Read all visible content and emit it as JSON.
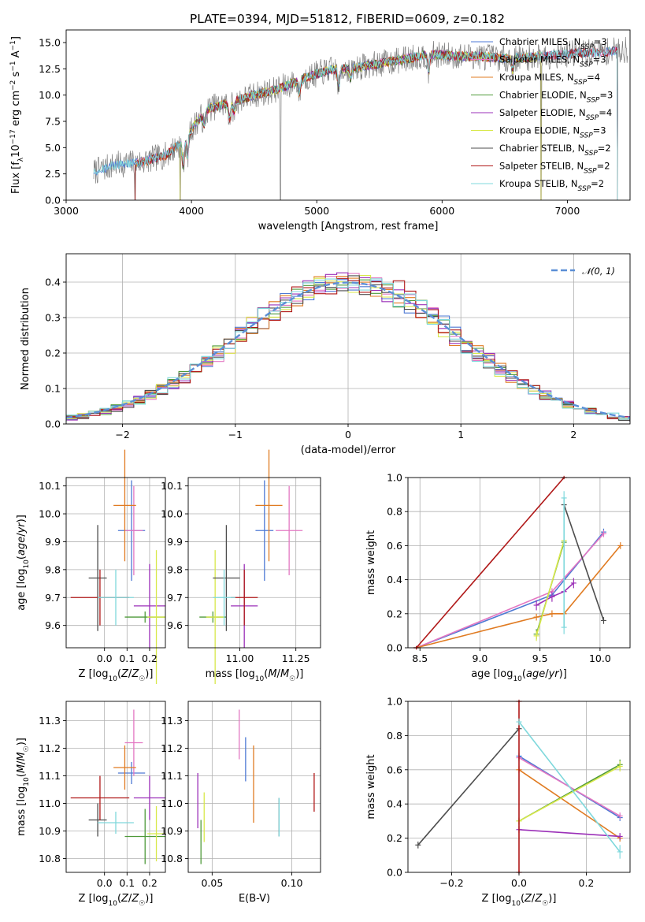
{
  "figure_title": "PLATE=0394, MJD=51812, FIBERID=0609, z=0.182",
  "palette": {
    "Chabrier MILES": "#4e79d4",
    "Salpeter MILES": "#e377c2",
    "Kroupa MILES": "#e07b22",
    "Chabrier ELODIE": "#4f9a3a",
    "Salpeter ELODIE": "#9b30b8",
    "Kroupa ELODIE": "#d8e84a",
    "Chabrier STELIB": "#4d4d4d",
    "Salpeter STELIB": "#b01818",
    "Kroupa STELIB": "#7fd8dc",
    "normal_curve": "#5b8fd6",
    "gray_spectrum": "#808080"
  },
  "chart_data": [
    {
      "id": "spectrum",
      "type": "line",
      "title": "PLATE=0394, MJD=51812, FIBERID=0609, z=0.182",
      "xlabel": "wavelength [Angstrom, rest frame]",
      "ylabel": "Flux [f_λ 10^-17 erg cm^-2 s^-1 A^-1]",
      "xlim": [
        3000,
        7500
      ],
      "ylim": [
        0,
        16.2
      ],
      "xticks": [
        "3000",
        "4000",
        "5000",
        "6000",
        "7000"
      ],
      "yticks": [
        "0.0",
        "2.5",
        "5.0",
        "7.5",
        "10.0",
        "12.5",
        "15.0"
      ],
      "grid": false,
      "legend_placement": "upper right",
      "legend": [
        {
          "base": "Chabrier MILES, N",
          "sub": "SSP",
          "tail": "=3"
        },
        {
          "base": "Salpeter MILES, N",
          "sub": "SSP",
          "tail": "=3"
        },
        {
          "base": "Kroupa MILES, N",
          "sub": "SSP",
          "tail": "=4"
        },
        {
          "base": "Chabrier ELODIE, N",
          "sub": "SSP",
          "tail": "=3"
        },
        {
          "base": "Salpeter ELODIE, N",
          "sub": "SSP",
          "tail": "=4"
        },
        {
          "base": "Kroupa ELODIE, N",
          "sub": "SSP",
          "tail": "=3"
        },
        {
          "base": "Chabrier STELIB, N",
          "sub": "SSP",
          "tail": "=2"
        },
        {
          "base": "Salpeter STELIB, N",
          "sub": "SSP",
          "tail": "=2"
        },
        {
          "base": "Kroupa STELIB, N",
          "sub": "SSP",
          "tail": "=2"
        }
      ],
      "continuum": {
        "x": [
          3220,
          3400,
          3600,
          3800,
          3950,
          4050,
          4150,
          4300,
          4500,
          4700,
          4900,
          5100,
          5300,
          5500,
          5700,
          5900,
          6100,
          6300,
          6500,
          6700,
          6900,
          7100,
          7300,
          7450
        ],
        "y": [
          2.7,
          3.4,
          3.6,
          4.3,
          5.8,
          7.6,
          8.8,
          9.2,
          10.0,
          10.6,
          11.6,
          12.4,
          12.6,
          13.0,
          13.4,
          13.9,
          13.7,
          13.7,
          13.5,
          13.6,
          13.8,
          14.0,
          14.1,
          14.3
        ]
      },
      "features": [
        {
          "x": 3934,
          "depth": 2.3
        },
        {
          "x": 3968,
          "depth": 2.0
        },
        {
          "x": 4101,
          "depth": 1.2
        },
        {
          "x": 4304,
          "depth": 1.5
        },
        {
          "x": 4340,
          "depth": 1.0
        },
        {
          "x": 4861,
          "depth": 1.3
        },
        {
          "x": 5175,
          "depth": 1.8
        },
        {
          "x": 5270,
          "depth": 1.0
        },
        {
          "x": 5893,
          "depth": 1.6
        },
        {
          "x": 6563,
          "depth": 1.2
        }
      ],
      "spikes": [
        {
          "x": 3550,
          "to": 0
        },
        {
          "x": 3910,
          "to": 0
        },
        {
          "x": 4710,
          "to": 0
        },
        {
          "x": 6790,
          "to": 0
        },
        {
          "x": 7400,
          "to": 0
        }
      ]
    },
    {
      "id": "residuals",
      "type": "histogram",
      "xlabel": "(data-model)/error",
      "ylabel": "Normed distribution",
      "xlim": [
        -2.5,
        2.5
      ],
      "ylim": [
        0,
        0.48
      ],
      "xticks": [
        "−2",
        "−1",
        "0",
        "1",
        "2"
      ],
      "yticks": [
        "0.0",
        "0.1",
        "0.2",
        "0.3",
        "0.4"
      ],
      "grid": true,
      "legend_placement": "upper right",
      "normal_label": "𝒩(0, 1)",
      "bin_width": 0.1
    },
    {
      "id": "age_vs_Z",
      "type": "errorbar",
      "xlabel": "Z [log10(Z/Z☉)]",
      "ylabel": "age  [log10(age/yr)]",
      "xlim": [
        -0.17,
        0.27
      ],
      "ylim": [
        9.52,
        10.13
      ],
      "xticks": [
        "0.0",
        "0.1",
        "0.2"
      ],
      "yticks": [
        "9.6",
        "9.7",
        "9.8",
        "9.9",
        "10.0",
        "10.1"
      ],
      "grid": true,
      "points": [
        {
          "model": "Chabrier MILES",
          "x": 0.12,
          "y": 9.94,
          "xerr": 0.06,
          "yerr": 0.18
        },
        {
          "model": "Salpeter MILES",
          "x": 0.13,
          "y": 9.94,
          "xerr": 0.04,
          "yerr": 0.16
        },
        {
          "model": "Kroupa MILES",
          "x": 0.09,
          "y": 10.03,
          "xerr": 0.05,
          "yerr": 0.2
        },
        {
          "model": "Chabrier ELODIE",
          "x": 0.18,
          "y": 9.63,
          "xerr": 0.09,
          "yerr": 0.02
        },
        {
          "model": "Salpeter ELODIE",
          "x": 0.2,
          "y": 9.67,
          "xerr": 0.07,
          "yerr": 0.15
        },
        {
          "model": "Kroupa ELODIE",
          "x": 0.23,
          "y": 9.63,
          "xerr": 0.04,
          "yerr": 0.24
        },
        {
          "model": "Chabrier STELIB",
          "x": -0.03,
          "y": 9.77,
          "xerr": 0.04,
          "yerr": 0.19
        },
        {
          "model": "Salpeter STELIB",
          "x": -0.02,
          "y": 9.7,
          "xerr": 0.13,
          "yerr": 0.1
        },
        {
          "model": "Kroupa STELIB",
          "x": 0.05,
          "y": 9.7,
          "xerr": 0.08,
          "yerr": 0.1
        }
      ]
    },
    {
      "id": "age_vs_mass",
      "type": "errorbar",
      "xlabel": "mass [log10(M/M☉)]",
      "ylabel": "",
      "xlim": [
        10.77,
        11.36
      ],
      "ylim": [
        9.52,
        10.13
      ],
      "xticks": [
        "10.75",
        "11.00",
        "11.25"
      ],
      "yticks": [
        "9.6",
        "9.7",
        "9.8",
        "9.9",
        "10.0",
        "10.1"
      ],
      "grid": true,
      "points": [
        {
          "model": "Chabrier MILES",
          "x": 11.11,
          "y": 9.94,
          "xerr": 0.04,
          "yerr": 0.18
        },
        {
          "model": "Salpeter MILES",
          "x": 11.22,
          "y": 9.94,
          "xerr": 0.06,
          "yerr": 0.16
        },
        {
          "model": "Kroupa MILES",
          "x": 11.13,
          "y": 10.03,
          "xerr": 0.06,
          "yerr": 0.2
        },
        {
          "model": "Chabrier ELODIE",
          "x": 10.88,
          "y": 9.63,
          "xerr": 0.06,
          "yerr": 0.02
        },
        {
          "model": "Salpeter ELODIE",
          "x": 11.02,
          "y": 9.67,
          "xerr": 0.06,
          "yerr": 0.15
        },
        {
          "model": "Kroupa ELODIE",
          "x": 10.89,
          "y": 9.63,
          "xerr": 0.04,
          "yerr": 0.24
        },
        {
          "model": "Chabrier STELIB",
          "x": 10.94,
          "y": 9.77,
          "xerr": 0.06,
          "yerr": 0.19
        },
        {
          "model": "Salpeter STELIB",
          "x": 11.02,
          "y": 9.7,
          "xerr": 0.06,
          "yerr": 0.1
        },
        {
          "model": "Kroupa STELIB",
          "x": 10.93,
          "y": 9.7,
          "xerr": 0.05,
          "yerr": 0.1
        }
      ]
    },
    {
      "id": "weight_vs_age",
      "type": "line",
      "xlabel": "age  [log10(age/yr)]",
      "ylabel": "mass weight",
      "xlim": [
        8.4,
        10.25
      ],
      "ylim": [
        0,
        1
      ],
      "xticks": [
        "8.5",
        "9.0",
        "9.5",
        "10.0"
      ],
      "yticks": [
        "0.0",
        "0.2",
        "0.4",
        "0.6",
        "0.8",
        "1.0"
      ],
      "grid": true,
      "series": [
        {
          "model": "Chabrier MILES",
          "x": [
            8.47,
            9.6,
            10.03
          ],
          "y": [
            0.0,
            0.31,
            0.68
          ],
          "yerr": [
            0.01,
            0.02,
            0.02
          ]
        },
        {
          "model": "Salpeter MILES",
          "x": [
            8.47,
            9.6,
            10.03
          ],
          "y": [
            0.0,
            0.33,
            0.67
          ],
          "yerr": [
            0.01,
            0.02,
            0.02
          ]
        },
        {
          "model": "Kroupa MILES",
          "x": [
            8.47,
            9.47,
            9.6,
            9.7,
            10.17
          ],
          "y": [
            0.0,
            0.18,
            0.2,
            0.2,
            0.6
          ],
          "yerr": [
            0.01,
            0.02,
            0.02,
            0.02,
            0.02
          ]
        },
        {
          "model": "Chabrier ELODIE",
          "x": [
            9.47,
            9.7
          ],
          "y": [
            0.08,
            0.62
          ],
          "yerr": [
            0.03,
            0.05
          ]
        },
        {
          "model": "Salpeter ELODIE",
          "x": [
            9.47,
            9.6,
            9.7,
            9.78
          ],
          "y": [
            0.25,
            0.3,
            0.33,
            0.38
          ],
          "yerr": [
            0.03,
            0.03,
            0.03,
            0.03
          ]
        },
        {
          "model": "Kroupa ELODIE",
          "x": [
            9.47,
            9.7
          ],
          "y": [
            0.07,
            0.63
          ],
          "yerr": [
            0.03,
            0.05
          ]
        },
        {
          "model": "Chabrier STELIB",
          "x": [
            9.7,
            10.03
          ],
          "y": [
            0.84,
            0.16
          ],
          "yerr": [
            0.03,
            0.02
          ]
        },
        {
          "model": "Salpeter STELIB",
          "x": [
            8.47,
            9.7
          ],
          "y": [
            0.0,
            1.0
          ],
          "yerr": [
            0.01,
            0.01
          ]
        },
        {
          "model": "Kroupa STELIB",
          "x": [
            9.7,
            9.7
          ],
          "y": [
            0.12,
            0.88
          ],
          "yerr": [
            0.04,
            0.04
          ]
        }
      ]
    },
    {
      "id": "mass_vs_Z",
      "type": "errorbar",
      "xlabel": "Z [log10(Z/Z☉)]",
      "ylabel": "mass [log10(M/M☉)]",
      "xlim": [
        -0.17,
        0.27
      ],
      "ylim": [
        10.75,
        11.37
      ],
      "xticks": [
        "0.0",
        "0.1",
        "0.2"
      ],
      "yticks": [
        "10.8",
        "10.9",
        "11.0",
        "11.1",
        "11.2",
        "11.3"
      ],
      "grid": true,
      "points": [
        {
          "model": "Chabrier MILES",
          "x": 0.12,
          "y": 11.11,
          "xerr": 0.06,
          "yerr": 0.04
        },
        {
          "model": "Salpeter MILES",
          "x": 0.13,
          "y": 11.22,
          "xerr": 0.04,
          "yerr": 0.12
        },
        {
          "model": "Kroupa MILES",
          "x": 0.09,
          "y": 11.13,
          "xerr": 0.05,
          "yerr": 0.08
        },
        {
          "model": "Chabrier ELODIE",
          "x": 0.18,
          "y": 10.88,
          "xerr": 0.09,
          "yerr": 0.1
        },
        {
          "model": "Salpeter ELODIE",
          "x": 0.2,
          "y": 11.02,
          "xerr": 0.07,
          "yerr": 0.08
        },
        {
          "model": "Kroupa ELODIE",
          "x": 0.23,
          "y": 10.89,
          "xerr": 0.04,
          "yerr": 0.1
        },
        {
          "model": "Chabrier STELIB",
          "x": -0.03,
          "y": 10.94,
          "xerr": 0.04,
          "yerr": 0.06
        },
        {
          "model": "Salpeter STELIB",
          "x": -0.02,
          "y": 11.02,
          "xerr": 0.13,
          "yerr": 0.08
        },
        {
          "model": "Kroupa STELIB",
          "x": 0.05,
          "y": 10.93,
          "xerr": 0.08,
          "yerr": 0.04
        }
      ]
    },
    {
      "id": "mass_vs_EBV",
      "type": "errorbar",
      "xlabel": "E(B-V)",
      "ylabel": "",
      "xlim": [
        0.035,
        0.118
      ],
      "ylim": [
        10.75,
        11.37
      ],
      "xticks": [
        "0.05",
        "0.10"
      ],
      "yticks": [
        "10.8",
        "10.9",
        "11.0",
        "11.1",
        "11.2",
        "11.3"
      ],
      "grid": true,
      "points": [
        {
          "model": "Chabrier MILES",
          "x": 0.071,
          "y": 11.16,
          "xerr": 0,
          "yerr": 0.08
        },
        {
          "model": "Salpeter MILES",
          "x": 0.067,
          "y": 11.25,
          "xerr": 0,
          "yerr": 0.09
        },
        {
          "model": "Kroupa MILES",
          "x": 0.076,
          "y": 11.07,
          "xerr": 0,
          "yerr": 0.14
        },
        {
          "model": "Chabrier ELODIE",
          "x": 0.043,
          "y": 10.86,
          "xerr": 0,
          "yerr": 0.08
        },
        {
          "model": "Salpeter ELODIE",
          "x": 0.041,
          "y": 11.01,
          "xerr": 0,
          "yerr": 0.1
        },
        {
          "model": "Kroupa ELODIE",
          "x": 0.045,
          "y": 10.95,
          "xerr": 0,
          "yerr": 0.09
        },
        {
          "model": "Chabrier STELIB",
          "x": 0.092,
          "y": 10.95,
          "xerr": 0,
          "yerr": 0.07
        },
        {
          "model": "Salpeter STELIB",
          "x": 0.114,
          "y": 11.04,
          "xerr": 0,
          "yerr": 0.07
        },
        {
          "model": "Kroupa STELIB",
          "x": 0.092,
          "y": 10.95,
          "xerr": 0,
          "yerr": 0.07
        }
      ]
    },
    {
      "id": "weight_vs_Z",
      "type": "line",
      "xlabel": "Z [log10(Z/Z☉)]",
      "ylabel": "mass weight",
      "xlim": [
        -0.33,
        0.33
      ],
      "ylim": [
        0,
        1
      ],
      "xticks": [
        "−0.2",
        "0.0",
        "0.2"
      ],
      "yticks": [
        "0.0",
        "0.2",
        "0.4",
        "0.6",
        "0.8",
        "1.0"
      ],
      "grid": true,
      "series": [
        {
          "model": "Chabrier MILES",
          "x": [
            0.0,
            0.3
          ],
          "y": [
            0.68,
            0.32
          ],
          "yerr": [
            0.02,
            0.02
          ]
        },
        {
          "model": "Salpeter MILES",
          "x": [
            0.0,
            0.3
          ],
          "y": [
            0.67,
            0.33
          ],
          "yerr": [
            0.02,
            0.02
          ]
        },
        {
          "model": "Kroupa MILES",
          "x": [
            0.0,
            0.3
          ],
          "y": [
            0.6,
            0.2
          ],
          "yerr": [
            0.02,
            0.02
          ]
        },
        {
          "model": "Chabrier ELODIE",
          "x": [
            0.0,
            0.3
          ],
          "y": [
            0.3,
            0.63
          ],
          "yerr": [
            0.02,
            0.03
          ]
        },
        {
          "model": "Salpeter ELODIE",
          "x": [
            0.0,
            0.3
          ],
          "y": [
            0.25,
            0.21
          ],
          "yerr": [
            0.02,
            0.02
          ]
        },
        {
          "model": "Kroupa ELODIE",
          "x": [
            0.0,
            0.3
          ],
          "y": [
            0.3,
            0.62
          ],
          "yerr": [
            0.02,
            0.03
          ]
        },
        {
          "model": "Chabrier STELIB",
          "x": [
            -0.3,
            0.0
          ],
          "y": [
            0.16,
            0.84
          ],
          "yerr": [
            0.02,
            0.02
          ]
        },
        {
          "model": "Salpeter STELIB",
          "x": [
            0.0,
            0.0
          ],
          "y": [
            0.0,
            1.0
          ],
          "yerr": [
            0.01,
            0.01
          ]
        },
        {
          "model": "Kroupa STELIB",
          "x": [
            0.0,
            0.3
          ],
          "y": [
            0.88,
            0.12
          ],
          "yerr": [
            0.02,
            0.04
          ]
        }
      ]
    }
  ]
}
